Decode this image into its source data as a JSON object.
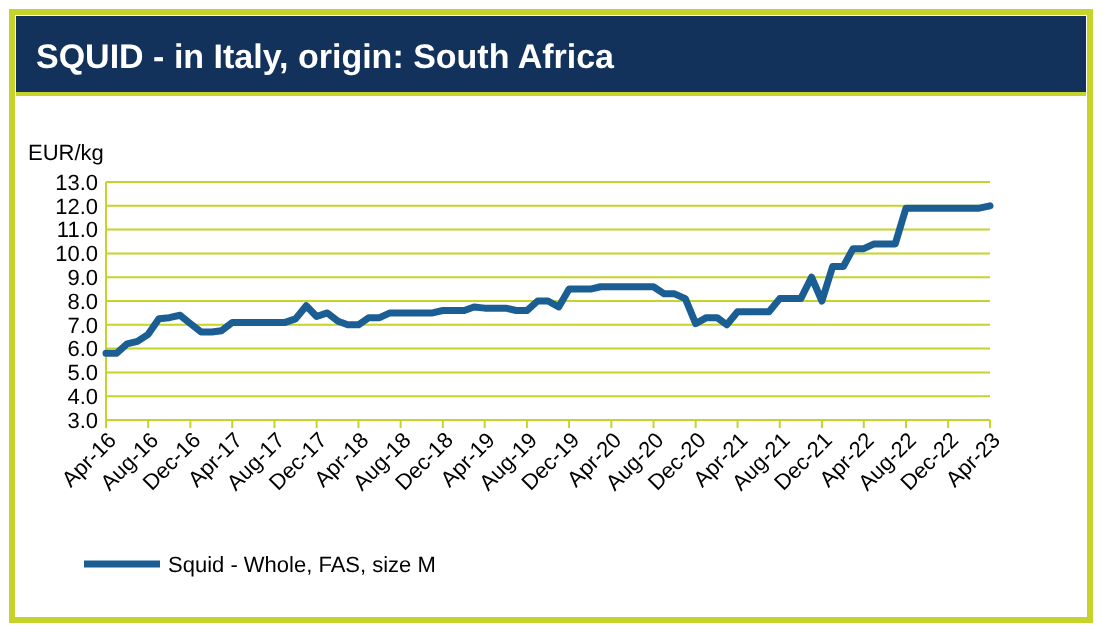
{
  "chart_data": {
    "type": "line",
    "title": "SQUID - in Italy, origin: South Africa",
    "ylabel": "EUR/kg",
    "x": [
      "2016-04",
      "2016-05",
      "2016-06",
      "2016-07",
      "2016-08",
      "2016-09",
      "2016-10",
      "2016-11",
      "2016-12",
      "2017-01",
      "2017-02",
      "2017-03",
      "2017-04",
      "2017-05",
      "2017-06",
      "2017-07",
      "2017-08",
      "2017-09",
      "2017-10",
      "2017-11",
      "2017-12",
      "2018-01",
      "2018-02",
      "2018-03",
      "2018-04",
      "2018-05",
      "2018-06",
      "2018-07",
      "2018-08",
      "2018-09",
      "2018-10",
      "2018-11",
      "2018-12",
      "2019-01",
      "2019-02",
      "2019-03",
      "2019-04",
      "2019-05",
      "2019-06",
      "2019-07",
      "2019-08",
      "2019-09",
      "2019-10",
      "2019-11",
      "2019-12",
      "2020-01",
      "2020-02",
      "2020-03",
      "2020-04",
      "2020-05",
      "2020-06",
      "2020-07",
      "2020-08",
      "2020-09",
      "2020-10",
      "2020-11",
      "2020-12",
      "2021-01",
      "2021-02",
      "2021-03",
      "2021-04",
      "2021-05",
      "2021-06",
      "2021-07",
      "2021-08",
      "2021-09",
      "2021-10",
      "2021-11",
      "2021-12",
      "2022-01",
      "2022-02",
      "2022-03",
      "2022-04",
      "2022-05",
      "2022-06",
      "2022-07",
      "2022-08",
      "2022-09",
      "2022-10",
      "2022-11",
      "2022-12",
      "2023-01",
      "2023-02",
      "2023-03",
      "2023-04"
    ],
    "series": [
      {
        "name": "Squid - Whole, FAS, size M",
        "color": "#1b5e94",
        "values": [
          5.8,
          5.8,
          6.2,
          6.3,
          6.6,
          7.25,
          7.3,
          7.4,
          7.05,
          6.7,
          6.7,
          6.75,
          7.1,
          7.1,
          7.1,
          7.1,
          7.1,
          7.1,
          7.25,
          7.8,
          7.35,
          7.5,
          7.15,
          7.0,
          7.0,
          7.3,
          7.3,
          7.5,
          7.5,
          7.5,
          7.5,
          7.5,
          7.6,
          7.6,
          7.6,
          7.75,
          7.7,
          7.7,
          7.7,
          7.6,
          7.6,
          8.0,
          8.0,
          7.75,
          8.5,
          8.5,
          8.5,
          8.6,
          8.6,
          8.6,
          8.6,
          8.6,
          8.6,
          8.3,
          8.3,
          8.1,
          7.05,
          7.3,
          7.3,
          7.0,
          7.55,
          7.55,
          7.55,
          7.55,
          8.1,
          8.1,
          8.1,
          9.0,
          8.0,
          9.45,
          9.45,
          10.2,
          10.2,
          10.4,
          10.4,
          10.4,
          11.9,
          11.9,
          11.9,
          11.9,
          11.9,
          11.9,
          11.9,
          11.9,
          12.0
        ]
      }
    ],
    "xlim": [
      "2016-04",
      "2023-04"
    ],
    "xticks": [
      {
        "value": "2016-04",
        "label": "Apr-16"
      },
      {
        "value": "2016-08",
        "label": "Aug-16"
      },
      {
        "value": "2016-12",
        "label": "Dec-16"
      },
      {
        "value": "2017-04",
        "label": "Apr-17"
      },
      {
        "value": "2017-08",
        "label": "Aug-17"
      },
      {
        "value": "2017-12",
        "label": "Dec-17"
      },
      {
        "value": "2018-04",
        "label": "Apr-18"
      },
      {
        "value": "2018-08",
        "label": "Aug-18"
      },
      {
        "value": "2018-12",
        "label": "Dec-18"
      },
      {
        "value": "2019-04",
        "label": "Apr-19"
      },
      {
        "value": "2019-08",
        "label": "Aug-19"
      },
      {
        "value": "2019-12",
        "label": "Dec-19"
      },
      {
        "value": "2020-04",
        "label": "Apr-20"
      },
      {
        "value": "2020-08",
        "label": "Aug-20"
      },
      {
        "value": "2020-12",
        "label": "Dec-20"
      },
      {
        "value": "2021-04",
        "label": "Apr-21"
      },
      {
        "value": "2021-08",
        "label": "Aug-21"
      },
      {
        "value": "2021-12",
        "label": "Dec-21"
      },
      {
        "value": "2022-04",
        "label": "Apr-22"
      },
      {
        "value": "2022-08",
        "label": "Aug-22"
      },
      {
        "value": "2022-12",
        "label": "Dec-22"
      },
      {
        "value": "2023-04",
        "label": "Apr-23"
      }
    ],
    "ylim": [
      3,
      13
    ],
    "yticks": [
      {
        "value": 3,
        "label": "3.0"
      },
      {
        "value": 4,
        "label": "4.0"
      },
      {
        "value": 5,
        "label": "5.0"
      },
      {
        "value": 6,
        "label": "6.0"
      },
      {
        "value": 7,
        "label": "7.0"
      },
      {
        "value": 8,
        "label": "8.0"
      },
      {
        "value": 9,
        "label": "9.0"
      },
      {
        "value": 10,
        "label": "10.0"
      },
      {
        "value": 11,
        "label": "11.0"
      },
      {
        "value": 12,
        "label": "12.0"
      },
      {
        "value": 13,
        "label": "13.0"
      }
    ],
    "grid": "y",
    "legend": "bottom left",
    "marker": "none",
    "line_style": "solid"
  }
}
